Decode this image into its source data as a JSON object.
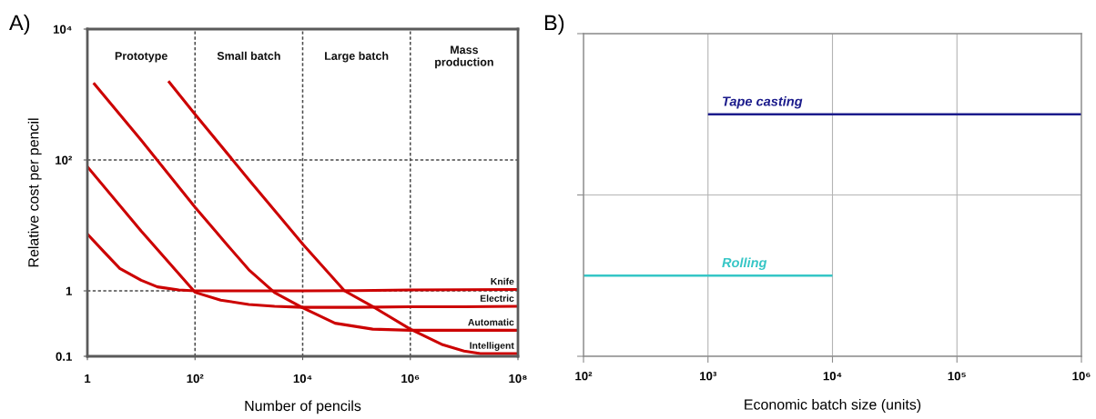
{
  "chart_data": [
    {
      "type": "line",
      "title": "A)",
      "xlabel": "Number of pencils",
      "ylabel": "Relative cost per pencil",
      "log": "xy",
      "xlim": [
        1,
        100000000
      ],
      "ylim": [
        0.1,
        10000
      ],
      "xticks": [
        1,
        {
          "value": 100,
          "label": "10²"
        },
        {
          "value": 10000,
          "label": "10⁴"
        },
        {
          "value": 1000000,
          "label": "10⁶"
        },
        {
          "value": 100000000,
          "label": "10⁸"
        }
      ],
      "yticks": [
        0.1,
        1,
        {
          "value": 100,
          "label": "10²"
        },
        {
          "value": 10000,
          "label": "10⁴"
        }
      ],
      "grid": true,
      "annotations": [
        "Prototype",
        "Small batch",
        "Large batch",
        "Mass production"
      ],
      "series": [
        {
          "name": "Knife",
          "color": "#cc0000",
          "x": [
            1,
            2,
            4,
            10,
            20,
            50,
            100,
            1000,
            10000,
            100000,
            1000000,
            10000000,
            100000000
          ],
          "values": [
            7.4,
            4.0,
            2.2,
            1.45,
            1.15,
            1.03,
            1.0,
            1.0,
            1.0,
            1.01,
            1.03,
            1.04,
            1.05
          ]
        },
        {
          "name": "Electric",
          "color": "#cc0000",
          "x": [
            1,
            10,
            100,
            300,
            1000,
            3000,
            10000,
            100000,
            1000000,
            10000000,
            100000000
          ],
          "values": [
            79,
            8.2,
            0.95,
            0.72,
            0.62,
            0.58,
            0.56,
            0.56,
            0.57,
            0.57,
            0.58
          ]
        },
        {
          "name": "Automatic",
          "color": "#cc0000",
          "x": [
            1.3,
            10,
            100,
            400,
            1000,
            3000,
            10000,
            40000,
            200000,
            1000000,
            10000000,
            100000000
          ],
          "values": [
            1500,
            200,
            19,
            5,
            2.1,
            0.94,
            0.55,
            0.32,
            0.26,
            0.25,
            0.25,
            0.25
          ]
        },
        {
          "name": "Intelligent",
          "color": "#cc0000",
          "x": [
            32,
            100,
            1000,
            10000,
            60000,
            220000,
            1000000,
            4000000,
            10000000,
            20000000,
            100000000
          ],
          "values": [
            1600,
            500,
            50,
            5.2,
            1.0,
            0.55,
            0.26,
            0.15,
            0.12,
            0.11,
            0.11
          ]
        }
      ]
    },
    {
      "type": "bar",
      "orientation": "horizontal",
      "title": "B)",
      "xlabel": "Economic batch size (units)",
      "log": "x",
      "xlim": [
        100,
        1000000
      ],
      "xticks": [
        {
          "value": 100,
          "label": "10²"
        },
        {
          "value": 1000,
          "label": "10³"
        },
        {
          "value": 10000,
          "label": "10⁴"
        },
        {
          "value": 100000,
          "label": "10⁵"
        },
        {
          "value": 1000000,
          "label": "10⁶"
        }
      ],
      "grid": true,
      "categories": [
        "Tape casting",
        "Rolling"
      ],
      "base": [
        1000,
        100
      ],
      "values": [
        999000,
        9900
      ],
      "colors": [
        "#1c1c8c",
        "#36c6c6"
      ]
    }
  ]
}
